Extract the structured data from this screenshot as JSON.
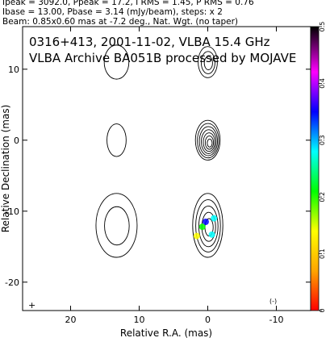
{
  "header": {
    "line1": "Ipeak = 3092.0, Ppeak = 17.2, I RMS = 1.45, P RMS = 0.76",
    "line2": "Ibase = 13.00, Pbase = 3.14 (mJy/beam), steps: x 2",
    "line3": "Beam: 0.85x0.60 mas at -7.2 deg., Nat. Wgt. (no taper)"
  },
  "chart_data": {
    "type": "contour",
    "title_line1": "0316+413, 2001-11-02, VLBA 15.4 GHz",
    "title_line2": "VLBA Archive BA051B processed by MOJAVE",
    "xlabel": "Relative R.A. (mas)",
    "ylabel": "Relative Declination (mas)",
    "xlim": [
      27,
      -15
    ],
    "ylim": [
      -24,
      16
    ],
    "x_ticks": [
      20,
      10,
      0,
      -10
    ],
    "y_ticks": [
      10,
      0,
      -10,
      -20
    ],
    "colorbar": {
      "min": 0,
      "max": 0.5,
      "ticks": [
        0,
        0.1,
        0.2,
        0.3,
        0.4,
        0.5
      ]
    },
    "panels": [
      {
        "name": "left",
        "x_center": 13.3
      },
      {
        "name": "right",
        "x_center": 0
      }
    ],
    "regions": [
      {
        "x": 0,
        "y": 0,
        "rx": 1.8,
        "ry": 2.8,
        "levels": 7
      },
      {
        "x": 0,
        "y": 11,
        "rx": 1.4,
        "ry": 2.2,
        "levels": 3
      },
      {
        "x": 0,
        "y": -12,
        "rx": 2.2,
        "ry": 4.5,
        "levels": 5
      },
      {
        "x": 13.3,
        "y": 0,
        "rx": 1.4,
        "ry": 2.3,
        "levels": 1
      },
      {
        "x": 13.3,
        "y": 11,
        "rx": 1.8,
        "ry": 2.4,
        "levels": 1
      },
      {
        "x": 13.3,
        "y": -12,
        "rx": 3.0,
        "ry": 4.5,
        "levels": 2
      }
    ],
    "pol_blobs": [
      {
        "x": 0.3,
        "y": -11.5,
        "value": 0.35
      },
      {
        "x": 0.8,
        "y": -12.2,
        "value": 0.2
      },
      {
        "x": -0.6,
        "y": -13.3,
        "value": 0.25
      },
      {
        "x": 1.6,
        "y": -13.5,
        "value": 0.12
      },
      {
        "x": -0.9,
        "y": -11.0,
        "value": 0.3
      }
    ],
    "beam_mark": "(-)",
    "corner_mark": "+"
  },
  "colors": {
    "contour": "#000000",
    "colorbar_stops": [
      "#ff0000",
      "#ffa500",
      "#ffff00",
      "#00ff00",
      "#00ffff",
      "#0000ff",
      "#ff00ff",
      "#000000"
    ]
  }
}
